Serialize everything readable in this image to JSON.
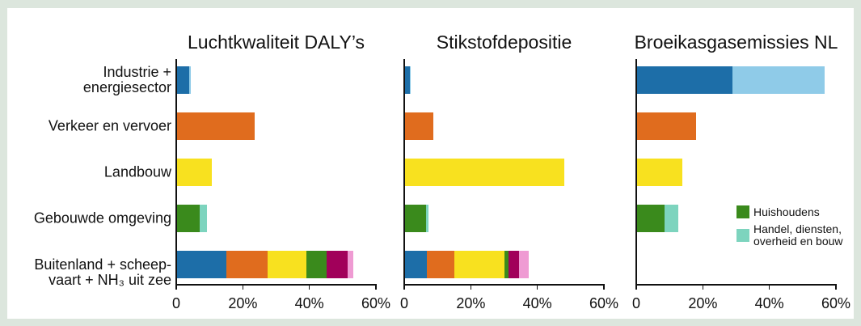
{
  "chart_data": {
    "type": "bar",
    "orientation": "horizontal",
    "stacked": true,
    "grid": false,
    "categories": [
      "Industrie +\nenergiesector",
      "Verkeer en vervoer",
      "Landbouw",
      "Gebouwde omgeving",
      "Buitenland + scheep-\nvaart + NH₃ uit zee"
    ],
    "xlim": [
      0,
      60
    ],
    "xticks": [
      0,
      20,
      40,
      60
    ],
    "xtick_labels": [
      "0",
      "20%",
      "40%",
      "60%"
    ],
    "panels": [
      {
        "title": "Luchtkwaliteit DALY’s",
        "stacks": [
          [
            {
              "value": 3.8,
              "color": "#1d6ea8"
            },
            {
              "value": 0.6,
              "color": "#8fcbe8"
            }
          ],
          [
            {
              "value": 23.5,
              "color": "#e06c1e"
            }
          ],
          [
            {
              "value": 10.7,
              "color": "#f8e11f"
            }
          ],
          [
            {
              "value": 7.0,
              "color": "#3a8a1c"
            },
            {
              "value": 2.2,
              "color": "#7dd4be"
            }
          ],
          [
            {
              "value": 15.1,
              "color": "#1d6ea8"
            },
            {
              "value": 12.4,
              "color": "#e06c1e"
            },
            {
              "value": 11.7,
              "color": "#f8e11f"
            },
            {
              "value": 6.1,
              "color": "#3a8a1c"
            },
            {
              "value": 6.1,
              "color": "#a1005a"
            },
            {
              "value": 1.9,
              "color": "#ef9bd3"
            }
          ]
        ]
      },
      {
        "title": "Stikstofdepositie",
        "stacks": [
          [
            {
              "value": 1.6,
              "color": "#1d6ea8"
            },
            {
              "value": 0.3,
              "color": "#8fcbe8"
            }
          ],
          [
            {
              "value": 8.7,
              "color": "#e06c1e"
            }
          ],
          [
            {
              "value": 48.1,
              "color": "#f8e11f"
            }
          ],
          [
            {
              "value": 6.6,
              "color": "#3a8a1c"
            },
            {
              "value": 0.7,
              "color": "#7dd4be"
            }
          ],
          [
            {
              "value": 6.8,
              "color": "#1d6ea8"
            },
            {
              "value": 8.3,
              "color": "#e06c1e"
            },
            {
              "value": 15.1,
              "color": "#f8e11f"
            },
            {
              "value": 1.2,
              "color": "#3a8a1c"
            },
            {
              "value": 3.2,
              "color": "#a1005a"
            },
            {
              "value": 2.9,
              "color": "#ef9bd3"
            }
          ]
        ]
      },
      {
        "title": "Broeikasgasemissies NL",
        "stacks": [
          [
            {
              "value": 28.9,
              "color": "#1d6ea8"
            },
            {
              "value": 27.7,
              "color": "#8fcbe8"
            }
          ],
          [
            {
              "value": 18.0,
              "color": "#e06c1e"
            }
          ],
          [
            {
              "value": 13.8,
              "color": "#f8e11f"
            }
          ],
          [
            {
              "value": 8.5,
              "color": "#3a8a1c"
            },
            {
              "value": 4.1,
              "color": "#7dd4be"
            }
          ],
          []
        ]
      }
    ],
    "legend": {
      "placement": "right",
      "items": [
        {
          "label": "Huishoudens",
          "color": "#3a8a1c"
        },
        {
          "label": "Handel, diensten,\noverheid en bouw",
          "color": "#7dd4be"
        }
      ]
    }
  }
}
